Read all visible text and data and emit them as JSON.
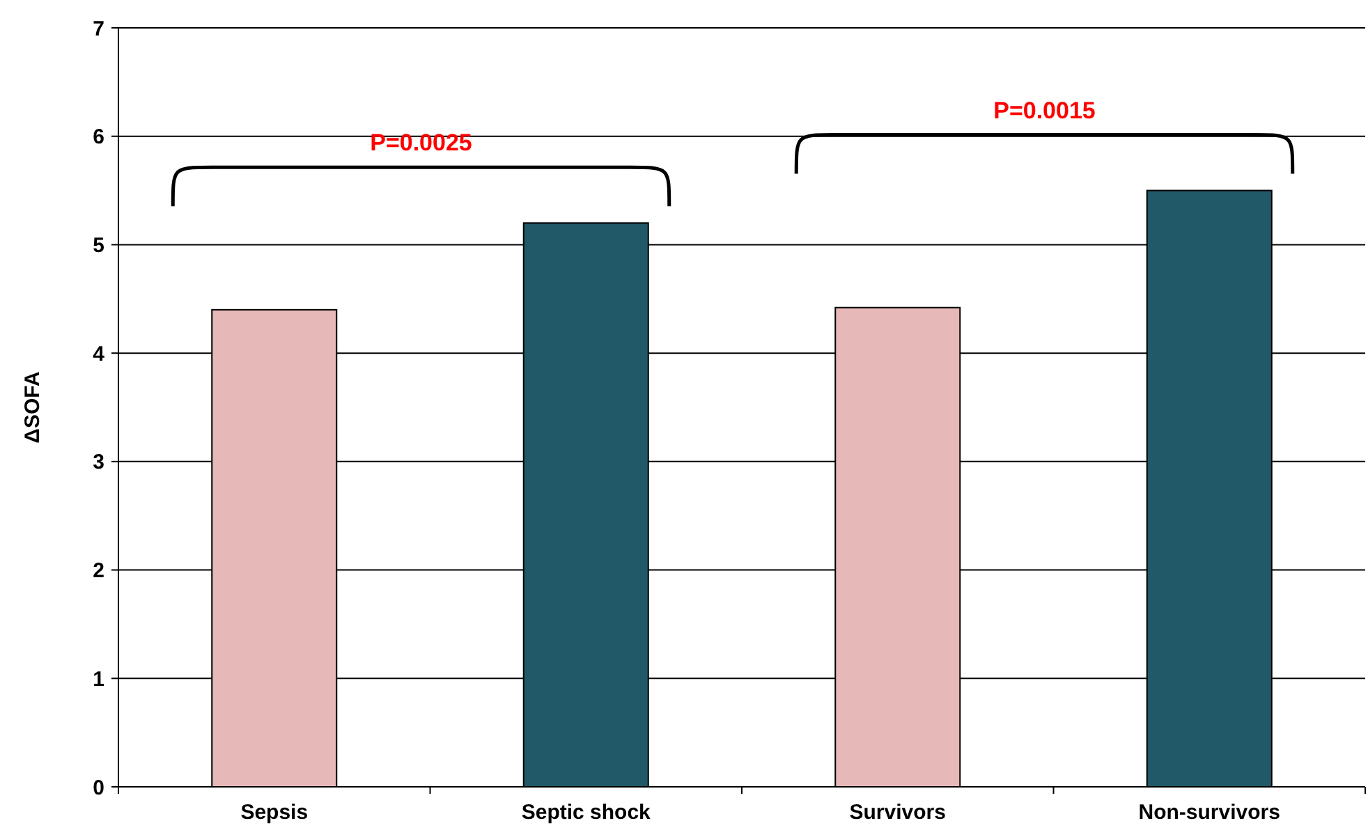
{
  "chart_data": {
    "type": "bar",
    "ylabel": "ΔSOFA",
    "categories": [
      "Sepsis",
      "Septic shock",
      "Survivors",
      "Non-survivors"
    ],
    "values": [
      4.4,
      5.2,
      4.42,
      5.5
    ],
    "colors": [
      "#e6b8b7",
      "#215968",
      "#e6b8b7",
      "#215968"
    ],
    "ylim": [
      0,
      7
    ],
    "yticks": [
      0,
      1,
      2,
      3,
      4,
      5,
      6,
      7
    ],
    "grid": "y",
    "annotations": [
      "P=0.0025",
      "P=0.0015"
    ]
  }
}
